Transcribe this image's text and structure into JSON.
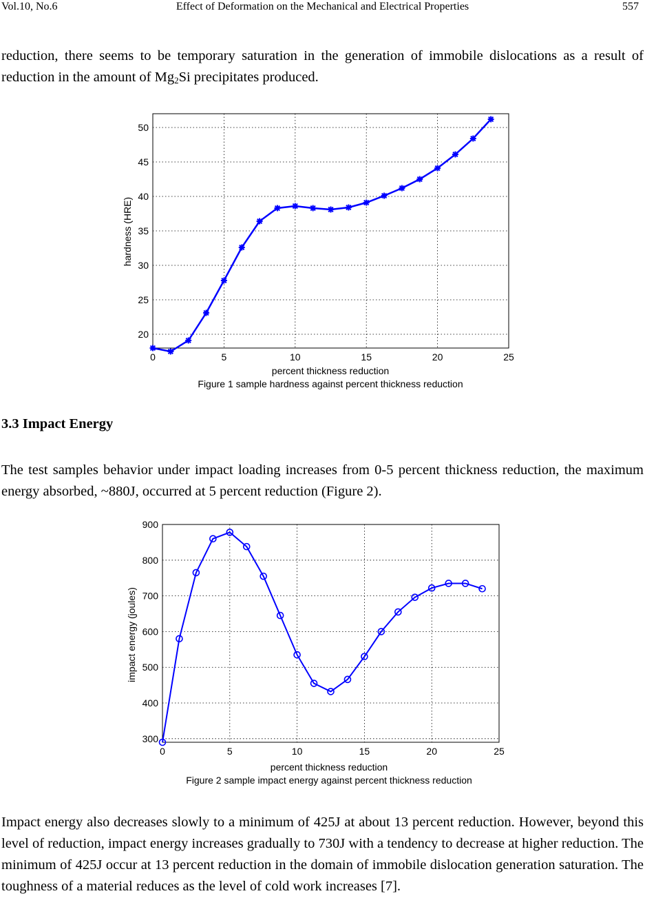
{
  "header": {
    "volume": "Vol.10, No.6",
    "title": "Effect of Deformation on the Mechanical and Electrical Properties",
    "page": "557"
  },
  "paragraph1": {
    "before_formula": "reduction, there seems to be temporary saturation in the generation of immobile dislocations as a result of reduction in the amount of Mg",
    "subscript": "2",
    "after_formula": "Si precipitates produced."
  },
  "section_heading": "3.3 Impact Energy",
  "paragraph2": "The test samples behavior under impact loading increases from 0-5 percent thickness reduction, the maximum energy absorbed, ~880J, occurred at 5 percent reduction (Figure 2).",
  "paragraph3": "Impact energy also decreases slowly to a minimum of 425J at about 13 percent reduction. However, beyond this level of reduction, impact energy increases gradually to 730J with a tendency to decrease at higher reduction. The minimum of 425J occur at 13 percent reduction in the domain of immobile dislocation generation saturation. The toughness of a material reduces as the level of cold work increases [7].",
  "colors": {
    "series": "#0000ff",
    "grid": "#000000"
  },
  "chart_data": [
    {
      "type": "line",
      "marker": "asterisk",
      "title": "",
      "caption": "Figure 1 sample hardness against percent  thickness reduction",
      "xlabel": "percent thickness reduction",
      "ylabel": "hardness (HRE)",
      "xlim": [
        0,
        25
      ],
      "ylim": [
        18,
        52
      ],
      "xticks": [
        0,
        5,
        10,
        15,
        20,
        25
      ],
      "yticks": [
        20,
        25,
        30,
        35,
        40,
        45,
        50
      ],
      "grid": true,
      "x": [
        0,
        1.25,
        2.5,
        3.75,
        5,
        6.25,
        7.5,
        8.75,
        10,
        11.25,
        12.5,
        13.75,
        15,
        16.25,
        17.5,
        18.75,
        20,
        21.25,
        22.5,
        23.75
      ],
      "values": [
        18,
        17.5,
        19.1,
        23.1,
        27.8,
        32.6,
        36.4,
        38.3,
        38.6,
        38.3,
        38.1,
        38.4,
        39.1,
        40.1,
        41.2,
        42.5,
        44.1,
        46.1,
        48.4,
        51.2
      ]
    },
    {
      "type": "line",
      "marker": "circle",
      "title": "",
      "caption": "Figure 2 sample impact energy against percent  thickness reduction",
      "xlabel": "percent thickness reduction",
      "ylabel": "impact energy (joules)",
      "xlim": [
        0,
        25
      ],
      "ylim": [
        290,
        900
      ],
      "xticks": [
        0,
        5,
        10,
        15,
        20,
        25
      ],
      "yticks": [
        300,
        400,
        500,
        600,
        700,
        800,
        900
      ],
      "grid": true,
      "x": [
        0,
        1.25,
        2.5,
        3.75,
        5,
        6.25,
        7.5,
        8.75,
        10,
        11.25,
        12.5,
        13.75,
        15,
        16.25,
        17.5,
        18.75,
        20,
        21.25,
        22.5,
        23.75
      ],
      "values": [
        290,
        580,
        765,
        860,
        878,
        838,
        755,
        645,
        535,
        455,
        432,
        466,
        530,
        600,
        655,
        696,
        722,
        735,
        735,
        720
      ]
    }
  ]
}
